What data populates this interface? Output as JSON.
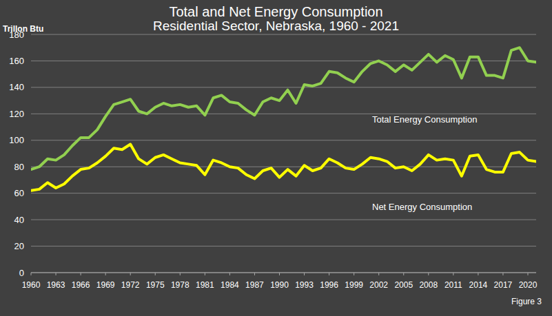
{
  "chart_data": {
    "type": "line",
    "title": "Total and Net Energy Consumption",
    "subtitle": "Residential Sector, Nebraska, 1960 - 2021",
    "y_label": "Trillon Btu",
    "annotations": [
      "Figure 3"
    ],
    "x": [
      1960,
      1961,
      1962,
      1963,
      1964,
      1965,
      1966,
      1967,
      1968,
      1969,
      1970,
      1971,
      1972,
      1973,
      1974,
      1975,
      1976,
      1977,
      1978,
      1979,
      1980,
      1981,
      1982,
      1983,
      1984,
      1985,
      1986,
      1987,
      1988,
      1989,
      1990,
      1991,
      1992,
      1993,
      1994,
      1995,
      1996,
      1997,
      1998,
      1999,
      2000,
      2001,
      2002,
      2003,
      2004,
      2005,
      2006,
      2007,
      2008,
      2009,
      2010,
      2011,
      2012,
      2013,
      2014,
      2015,
      2016,
      2017,
      2018,
      2019,
      2020,
      2021
    ],
    "series": [
      {
        "name": "Total Energy Consumption",
        "color": "#92d050",
        "line_style": "solid",
        "values": [
          78,
          80,
          86,
          85,
          89,
          96,
          102,
          102,
          108,
          118,
          127,
          129,
          131,
          122,
          120,
          125,
          128,
          126,
          127,
          125,
          126,
          119,
          132,
          134,
          129,
          128,
          123,
          119,
          129,
          132,
          130,
          138,
          128,
          142,
          141,
          143,
          152,
          151,
          147,
          144,
          152,
          158,
          160,
          157,
          152,
          157,
          153,
          159,
          165,
          159,
          164,
          161,
          147,
          163,
          163,
          149,
          149,
          147,
          168,
          170,
          160,
          159
        ]
      },
      {
        "name": "Net Energy Consumption",
        "color": "#ffff00",
        "line_style": "solid",
        "values": [
          62,
          63,
          68,
          64,
          67,
          73,
          78,
          79,
          83,
          88,
          94,
          93,
          97,
          86,
          82,
          87,
          89,
          86,
          83,
          82,
          81,
          74,
          85,
          83,
          80,
          79,
          74,
          71,
          77,
          79,
          72,
          78,
          73,
          81,
          77,
          79,
          86,
          83,
          79,
          78,
          82,
          87,
          86,
          84,
          79,
          80,
          77,
          82,
          89,
          85,
          86,
          85,
          73,
          88,
          89,
          78,
          76,
          76,
          90,
          91,
          85,
          84
        ]
      }
    ],
    "xlim": [
      1960,
      2021
    ],
    "xticks": [
      1960,
      1963,
      1966,
      1969,
      1972,
      1975,
      1978,
      1981,
      1984,
      1987,
      1990,
      1993,
      1996,
      1999,
      2002,
      2005,
      2008,
      2011,
      2014,
      2017,
      2020
    ],
    "ylim": [
      0,
      180
    ],
    "yticks": [
      0,
      20,
      40,
      60,
      80,
      100,
      120,
      140,
      160,
      180
    ],
    "grid": true
  }
}
